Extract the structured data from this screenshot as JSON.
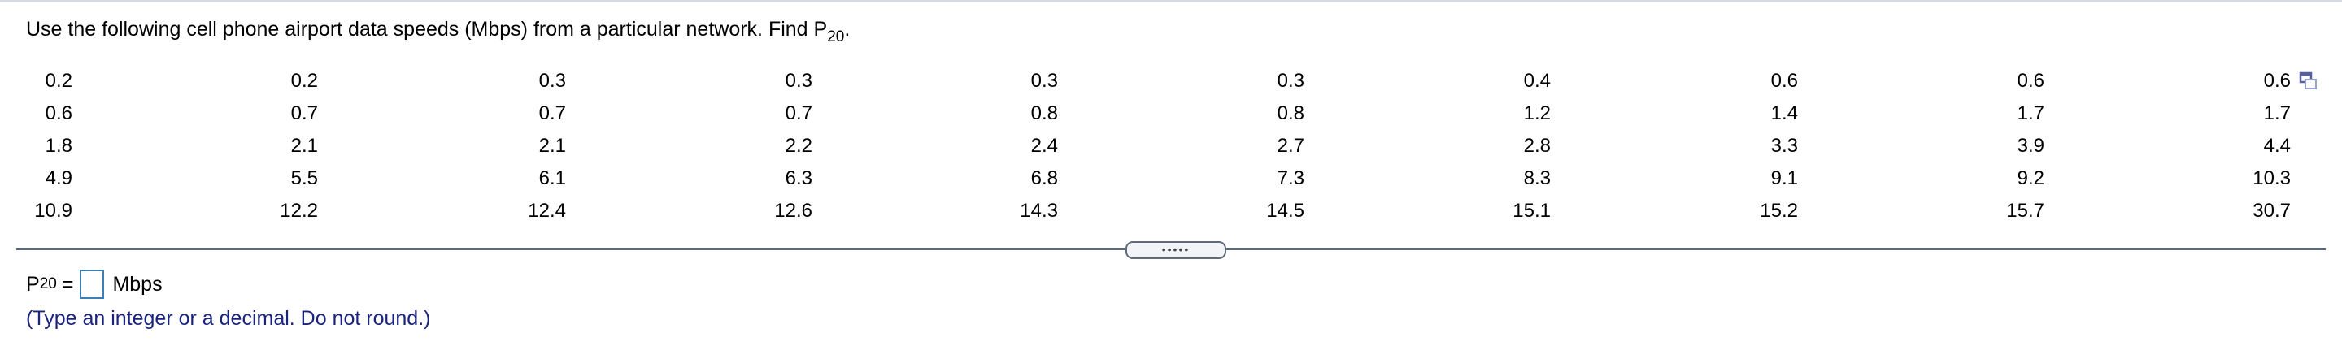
{
  "question": {
    "text": "Use the following cell phone airport data speeds (Mbps) from a particular network. Find P",
    "subscript": "20",
    "suffix": "."
  },
  "data_table": {
    "rows": [
      [
        "0.2",
        "0.2",
        "0.3",
        "0.3",
        "0.3",
        "0.3",
        "0.4",
        "0.6",
        "0.6",
        "0.6"
      ],
      [
        "0.6",
        "0.7",
        "0.7",
        "0.7",
        "0.8",
        "0.8",
        "1.2",
        "1.4",
        "1.7",
        "1.7"
      ],
      [
        "1.8",
        "2.1",
        "2.1",
        "2.2",
        "2.4",
        "2.7",
        "2.8",
        "3.3",
        "3.9",
        "4.4"
      ],
      [
        "4.9",
        "5.5",
        "6.1",
        "6.3",
        "6.8",
        "7.3",
        "8.3",
        "9.1",
        "9.2",
        "10.3"
      ],
      [
        "10.9",
        "12.2",
        "12.4",
        "12.6",
        "14.3",
        "14.5",
        "15.1",
        "15.2",
        "15.7",
        "30.7"
      ]
    ]
  },
  "divider_handle": "•••••",
  "answer": {
    "label": "P",
    "subscript": "20",
    "equals": "=",
    "value": "",
    "unit": "Mbps"
  },
  "hint": "(Type an integer or a decimal. Do not round.)",
  "colors": {
    "hint": "#1a237e",
    "input_border": "#3a7fb5",
    "divider": "#5f6b78"
  }
}
